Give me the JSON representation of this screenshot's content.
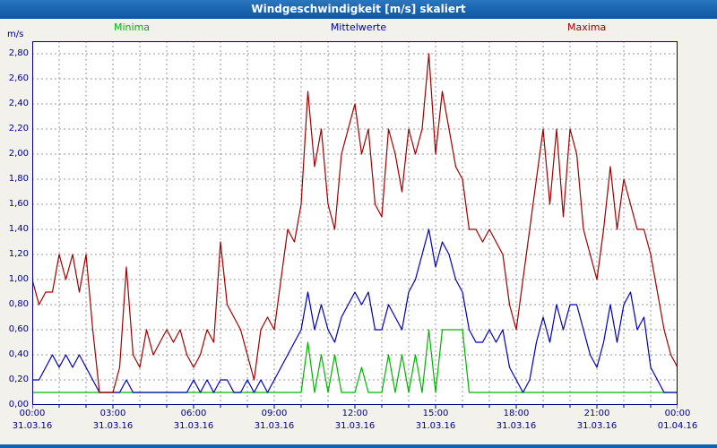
{
  "colors": {
    "titlebar": "#1262b4",
    "axis_text": "#000080",
    "plot_border": "#000080",
    "grid": "#9a9a9a",
    "plot_background": "#ffffff"
  },
  "chart_data": {
    "type": "line",
    "title": "Windgeschwindigkeit [m/s] skaliert",
    "unit_label": "m/s",
    "legend_position": "top",
    "grid": "dashed; horizontal every 0.20 m/s, vertical every hour",
    "x_range_hours": [
      0,
      24
    ],
    "y_range": [
      0,
      2.9
    ],
    "sample_interval_hours": 0.25,
    "y_ticks": [
      2.8,
      2.6,
      2.4,
      2.2,
      2.0,
      1.8,
      1.6,
      1.4,
      1.2,
      1.0,
      0.8,
      0.6,
      0.4,
      0.2,
      0.0
    ],
    "y_tick_labels": [
      "2,80",
      "2,60",
      "2,40",
      "2,20",
      "2,00",
      "1,80",
      "1,60",
      "1,40",
      "1,20",
      "1,00",
      "0,80",
      "0,60",
      "0,40",
      "0,20",
      "0,00"
    ],
    "x_tick_hours": [
      0,
      3,
      6,
      9,
      12,
      15,
      18,
      21,
      24
    ],
    "x_tick_labels": [
      "00:00",
      "03:00",
      "06:00",
      "09:00",
      "12:00",
      "15:00",
      "18:00",
      "21:00",
      "00:00"
    ],
    "x_tick_dates": [
      "31.03.16",
      "31.03.16",
      "31.03.16",
      "31.03.16",
      "31.03.16",
      "31.03.16",
      "31.03.16",
      "31.03.16",
      "01.04.16"
    ],
    "series": [
      {
        "name": "Minima",
        "color": "#00b400",
        "values": [
          0.1,
          0.1,
          0.1,
          0.1,
          0.1,
          0.1,
          0.1,
          0.1,
          0.1,
          0.1,
          0.1,
          0.1,
          0.1,
          0.1,
          0.1,
          0.1,
          0.1,
          0.1,
          0.1,
          0.1,
          0.1,
          0.1,
          0.1,
          0.1,
          0.1,
          0.1,
          0.1,
          0.1,
          0.1,
          0.1,
          0.1,
          0.1,
          0.1,
          0.1,
          0.1,
          0.1,
          0.1,
          0.1,
          0.1,
          0.1,
          0.1,
          0.5,
          0.1,
          0.4,
          0.1,
          0.4,
          0.1,
          0.1,
          0.1,
          0.3,
          0.1,
          0.1,
          0.1,
          0.4,
          0.1,
          0.4,
          0.1,
          0.4,
          0.1,
          0.6,
          0.1,
          0.6,
          0.6,
          0.6,
          0.6,
          0.1,
          0.1,
          0.1,
          0.1,
          0.1,
          0.1,
          0.1,
          0.1,
          0.1,
          0.1,
          0.1,
          0.1,
          0.1,
          0.1,
          0.1,
          0.1,
          0.1,
          0.1,
          0.1,
          0.1,
          0.1,
          0.1,
          0.1,
          0.1,
          0.1,
          0.1,
          0.1,
          0.1,
          0.1,
          0.1,
          0.1,
          0.1
        ]
      },
      {
        "name": "Mittelwerte",
        "color": "#0000b4",
        "values": [
          0.2,
          0.2,
          0.3,
          0.4,
          0.3,
          0.4,
          0.3,
          0.4,
          0.3,
          0.2,
          0.1,
          0.1,
          0.1,
          0.1,
          0.2,
          0.1,
          0.1,
          0.1,
          0.1,
          0.1,
          0.1,
          0.1,
          0.1,
          0.1,
          0.2,
          0.1,
          0.2,
          0.1,
          0.2,
          0.2,
          0.1,
          0.1,
          0.2,
          0.1,
          0.2,
          0.1,
          0.2,
          0.3,
          0.4,
          0.5,
          0.6,
          0.9,
          0.6,
          0.8,
          0.6,
          0.5,
          0.7,
          0.8,
          0.9,
          0.8,
          0.9,
          0.6,
          0.6,
          0.8,
          0.7,
          0.6,
          0.9,
          1.0,
          1.2,
          1.4,
          1.1,
          1.3,
          1.2,
          1.0,
          0.9,
          0.6,
          0.5,
          0.5,
          0.6,
          0.5,
          0.6,
          0.3,
          0.2,
          0.1,
          0.2,
          0.5,
          0.7,
          0.5,
          0.8,
          0.6,
          0.8,
          0.8,
          0.6,
          0.4,
          0.3,
          0.5,
          0.8,
          0.5,
          0.8,
          0.9,
          0.6,
          0.7,
          0.3,
          0.2,
          0.1,
          0.1,
          0.1
        ]
      },
      {
        "name": "Maxima",
        "color": "#a00000",
        "values": [
          1.0,
          0.8,
          0.9,
          0.9,
          1.2,
          1.0,
          1.2,
          0.9,
          1.2,
          0.6,
          0.1,
          0.1,
          0.1,
          0.3,
          1.1,
          0.4,
          0.3,
          0.6,
          0.4,
          0.5,
          0.6,
          0.5,
          0.6,
          0.4,
          0.3,
          0.4,
          0.6,
          0.5,
          1.3,
          0.8,
          0.7,
          0.6,
          0.4,
          0.2,
          0.6,
          0.7,
          0.6,
          1.0,
          1.4,
          1.3,
          1.6,
          2.5,
          1.9,
          2.2,
          1.6,
          1.4,
          2.0,
          2.2,
          2.4,
          2.0,
          2.2,
          1.6,
          1.5,
          2.2,
          2.0,
          1.7,
          2.2,
          2.0,
          2.2,
          2.8,
          2.0,
          2.5,
          2.2,
          1.9,
          1.8,
          1.4,
          1.4,
          1.3,
          1.4,
          1.3,
          1.2,
          0.8,
          0.6,
          1.0,
          1.4,
          1.8,
          2.2,
          1.6,
          2.2,
          1.5,
          2.2,
          2.0,
          1.4,
          1.2,
          1.0,
          1.4,
          1.9,
          1.4,
          1.8,
          1.6,
          1.4,
          1.4,
          1.2,
          0.9,
          0.6,
          0.4,
          0.3
        ]
      }
    ]
  }
}
